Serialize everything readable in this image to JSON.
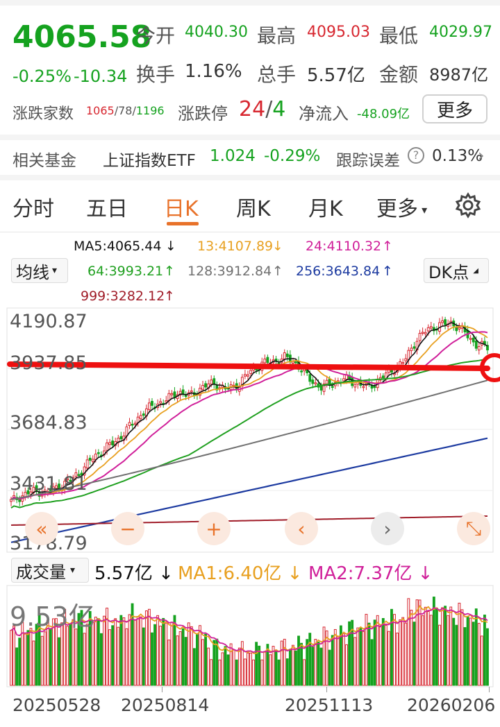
{
  "quote": {
    "price": "4065.58",
    "change_pct": "-0.25%",
    "change_val": "-10.34",
    "open_label": "今开",
    "open_value": "4040.30",
    "high_label": "最高",
    "high_value": "4095.03",
    "low_label": "最低",
    "low_value": "4029.97",
    "turnover_label": "换手",
    "turnover_value": "1.16%",
    "volume_label": "总手",
    "volume_value": "5.57亿",
    "amount_label": "金额",
    "amount_value": "8987亿",
    "breadth_label": "涨跌家数",
    "breadth_up": "1065",
    "breadth_flat": "78",
    "breadth_down": "1196",
    "breadth_sep": "/",
    "limit_label": "涨跌停",
    "limit_up": "24",
    "limit_sep": "/",
    "limit_down": "4",
    "netflow_label": "净流入",
    "netflow_value": "-48.09亿",
    "more_button": "更多"
  },
  "fund": {
    "label": "相关基金",
    "name": "上证指数ETF",
    "price": "1.024",
    "change": "-0.29%",
    "tracking_label": "跟踪误差",
    "tracking_value": "0.13%",
    "help_icon": "question-circle-icon",
    "chevron_icon": "chevron-right-icon"
  },
  "tabs": [
    "分时",
    "五日",
    "日K",
    "周K",
    "月K",
    "更多"
  ],
  "active_tab": "日K",
  "settings_icon": "gear-icon",
  "indicators": {
    "ma_selector": "均线",
    "ma5": "MA5:4065.44",
    "ma13": "13:4107.89",
    "ma24": "24:4110.32",
    "ma64": "64:3993.21",
    "ma128": "128:3912.84",
    "ma256": "256:3643.84",
    "ma999": "999:3282.12",
    "dk_button": "DK点"
  },
  "price_axis": [
    "4190.87",
    "3937.85",
    "3684.83",
    "3431.81",
    "3178.79"
  ],
  "volume": {
    "selector": "成交量",
    "value": "5.57亿",
    "ma1": "MA1:6.40亿",
    "ma2": "MA2:7.37亿",
    "axis_max": "9.53亿"
  },
  "dates": [
    "20250528",
    "20250814",
    "20251113",
    "20260206"
  ],
  "controls": [
    "rewind-icon",
    "zoom-out-icon",
    "zoom-in-icon",
    "prev-icon",
    "next-icon",
    "fullscreen-icon"
  ],
  "colors": {
    "up": "#d7262f",
    "down": "#15a21f",
    "accent": "#e8722a",
    "ma5": "#111111",
    "ma13": "#e8a020",
    "ma24": "#d0209a",
    "ma64": "#20a020",
    "ma128": "#707070",
    "ma256": "#1c3aa0",
    "ma999": "#a01c28"
  },
  "chart_data": {
    "type": "candlestick",
    "ylim": [
      3178.79,
      4190.87
    ],
    "y_ticks": [
      4190.87,
      3937.85,
      3684.83,
      3431.81,
      3178.79
    ],
    "x_tick_labels": [
      "20250528",
      "20250814",
      "20251113",
      "20260206"
    ],
    "close_trend": [
      3350,
      3380,
      3400,
      3390,
      3420,
      3450,
      3500,
      3560,
      3600,
      3640,
      3700,
      3760,
      3800,
      3820,
      3860,
      3840,
      3880,
      3900,
      3870,
      3890,
      3950,
      3990,
      4000,
      4020,
      3990,
      3920,
      3880,
      3900,
      3920,
      3900,
      3880,
      3920,
      3960,
      4000,
      4100,
      4150,
      4170,
      4180,
      4140,
      4080,
      4065
    ],
    "ma_series": [
      {
        "name": "MA5",
        "last": 4065.44
      },
      {
        "name": "13",
        "last": 4107.89
      },
      {
        "name": "24",
        "last": 4110.32
      },
      {
        "name": "64",
        "last": 3993.21
      },
      {
        "name": "128",
        "last": 3912.84
      },
      {
        "name": "256",
        "last": 3643.84
      },
      {
        "name": "999",
        "last": 3282.12
      }
    ],
    "volume_max": 9.53,
    "volume_last": 5.57,
    "volume_ma1": 6.4,
    "volume_ma2": 7.37
  }
}
